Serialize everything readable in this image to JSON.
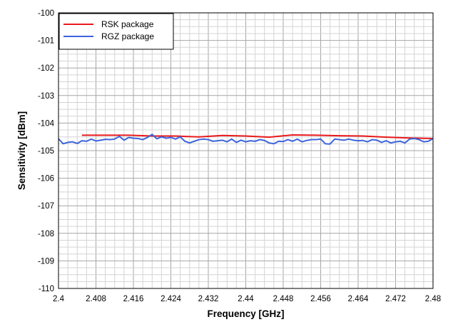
{
  "chart_data": {
    "type": "line",
    "title": "",
    "xlabel": "Frequency [GHz]",
    "ylabel": "Sensitivity [dBm]",
    "xlim": [
      2.4,
      2.48
    ],
    "ylim": [
      -110,
      -100
    ],
    "x_ticks": [
      2.4,
      2.408,
      2.416,
      2.424,
      2.432,
      2.44,
      2.448,
      2.456,
      2.464,
      2.472,
      2.48
    ],
    "x_tick_labels": [
      "2.4",
      "2.408",
      "2.416",
      "2.424",
      "2.432",
      "2.44",
      "2.448",
      "2.456",
      "2.464",
      "2.472",
      "2.48"
    ],
    "y_ticks": [
      -110,
      -109,
      -108,
      -107,
      -106,
      -105,
      -104,
      -103,
      -102,
      -101,
      -100
    ],
    "y_tick_labels": [
      "-110",
      "-109",
      "-108",
      "-107",
      "-106",
      "-105",
      "-104",
      "-103",
      "-102",
      "-101",
      "-100"
    ],
    "grid": true,
    "legend_position": "top-left",
    "series": [
      {
        "name": "RSK package",
        "color": "#e8191c",
        "x": [
          2.405,
          2.41,
          2.415,
          2.42,
          2.425,
          2.43,
          2.435,
          2.44,
          2.445,
          2.45,
          2.455,
          2.46,
          2.465,
          2.47,
          2.475,
          2.48
        ],
        "y": [
          -104.44,
          -104.44,
          -104.44,
          -104.47,
          -104.47,
          -104.5,
          -104.45,
          -104.47,
          -104.51,
          -104.43,
          -104.44,
          -104.46,
          -104.47,
          -104.51,
          -104.54,
          -104.56
        ]
      },
      {
        "name": "RGZ package",
        "color": "#3c64dc",
        "x": [
          2.4,
          2.401,
          2.402,
          2.403,
          2.404,
          2.405,
          2.406,
          2.407,
          2.408,
          2.409,
          2.41,
          2.411,
          2.412,
          2.413,
          2.414,
          2.415,
          2.416,
          2.417,
          2.418,
          2.419,
          2.42,
          2.421,
          2.422,
          2.423,
          2.424,
          2.425,
          2.426,
          2.427,
          2.428,
          2.429,
          2.43,
          2.431,
          2.432,
          2.433,
          2.434,
          2.435,
          2.436,
          2.437,
          2.438,
          2.439,
          2.44,
          2.441,
          2.442,
          2.443,
          2.444,
          2.445,
          2.446,
          2.447,
          2.448,
          2.449,
          2.45,
          2.451,
          2.452,
          2.453,
          2.454,
          2.455,
          2.456,
          2.457,
          2.458,
          2.459,
          2.46,
          2.461,
          2.462,
          2.463,
          2.464,
          2.465,
          2.466,
          2.467,
          2.468,
          2.469,
          2.47,
          2.471,
          2.472,
          2.473,
          2.474,
          2.475,
          2.476,
          2.477,
          2.478,
          2.479,
          2.48
        ],
        "y": [
          -104.57,
          -104.75,
          -104.7,
          -104.68,
          -104.74,
          -104.64,
          -104.66,
          -104.58,
          -104.65,
          -104.62,
          -104.59,
          -104.6,
          -104.58,
          -104.48,
          -104.62,
          -104.52,
          -104.55,
          -104.56,
          -104.6,
          -104.52,
          -104.41,
          -104.57,
          -104.5,
          -104.55,
          -104.52,
          -104.58,
          -104.5,
          -104.66,
          -104.72,
          -104.66,
          -104.6,
          -104.58,
          -104.6,
          -104.66,
          -104.64,
          -104.62,
          -104.68,
          -104.58,
          -104.7,
          -104.62,
          -104.68,
          -104.64,
          -104.66,
          -104.6,
          -104.63,
          -104.72,
          -104.75,
          -104.66,
          -104.67,
          -104.6,
          -104.66,
          -104.58,
          -104.68,
          -104.63,
          -104.6,
          -104.6,
          -104.58,
          -104.75,
          -104.76,
          -104.58,
          -104.6,
          -104.62,
          -104.58,
          -104.62,
          -104.64,
          -104.63,
          -104.68,
          -104.6,
          -104.62,
          -104.7,
          -104.64,
          -104.72,
          -104.68,
          -104.66,
          -104.72,
          -104.58,
          -104.56,
          -104.6,
          -104.68,
          -104.66,
          -104.56
        ]
      }
    ]
  }
}
